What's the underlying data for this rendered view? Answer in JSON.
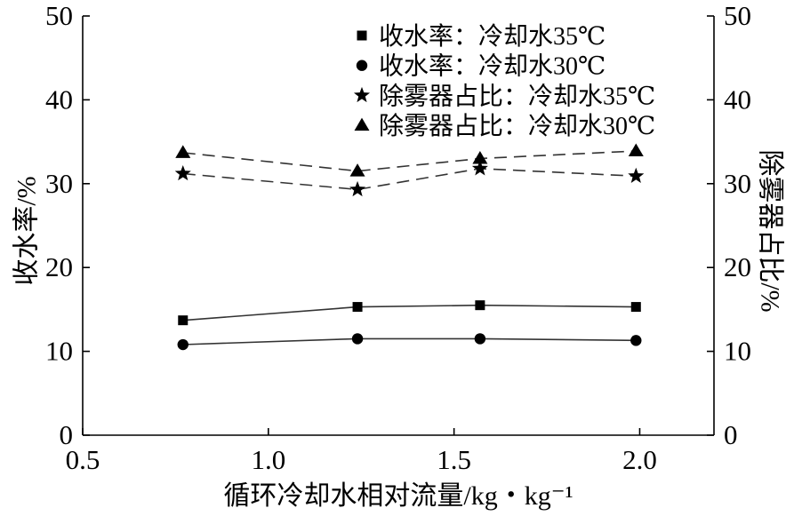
{
  "chart_data": {
    "type": "line",
    "xlabel": "循环冷却水相对流量/kg・kg⁻¹",
    "ylabel": "收水率/%",
    "y2label": "除雾器占比/%",
    "xlim": [
      0.5,
      2.2
    ],
    "xticks": [
      0.5,
      1.0,
      1.5,
      2.0
    ],
    "xtick_labels": [
      "0.5",
      "1.0",
      "1.5",
      "2.0"
    ],
    "ylim": [
      0,
      50
    ],
    "yticks": [
      0,
      10,
      20,
      30,
      40,
      50
    ],
    "ytick_labels": [
      "0",
      "10",
      "20",
      "30",
      "40",
      "50"
    ],
    "y2lim": [
      0,
      50
    ],
    "y2ticks": [
      0,
      10,
      20,
      30,
      40,
      50
    ],
    "y2tick_labels": [
      "0",
      "10",
      "20",
      "30",
      "40",
      "50"
    ],
    "grid": false,
    "legend_position": "top-right",
    "series": [
      {
        "name": "收水率：冷却水35℃",
        "marker": "square",
        "line_style": "solid",
        "axis": "left",
        "x": [
          0.77,
          1.24,
          1.57,
          1.99
        ],
        "y": [
          13.7,
          15.3,
          15.5,
          15.3
        ]
      },
      {
        "name": "收水率：冷却水30℃",
        "marker": "circle",
        "line_style": "solid",
        "axis": "left",
        "x": [
          0.77,
          1.24,
          1.57,
          1.99
        ],
        "y": [
          10.8,
          11.5,
          11.5,
          11.3
        ]
      },
      {
        "name": "除雾器占比：冷却水35℃",
        "marker": "star",
        "line_style": "dashed",
        "axis": "right",
        "x": [
          0.77,
          1.24,
          1.57,
          1.99
        ],
        "y": [
          31.2,
          29.3,
          31.8,
          30.9
        ]
      },
      {
        "name": "除雾器占比：冷却水30℃",
        "marker": "triangle",
        "line_style": "dashed",
        "axis": "right",
        "x": [
          0.77,
          1.24,
          1.57,
          1.99
        ],
        "y": [
          33.7,
          31.5,
          33.0,
          33.9
        ]
      }
    ]
  },
  "colors": {
    "line": "#333333",
    "marker": "#000000",
    "text": "#000000"
  }
}
